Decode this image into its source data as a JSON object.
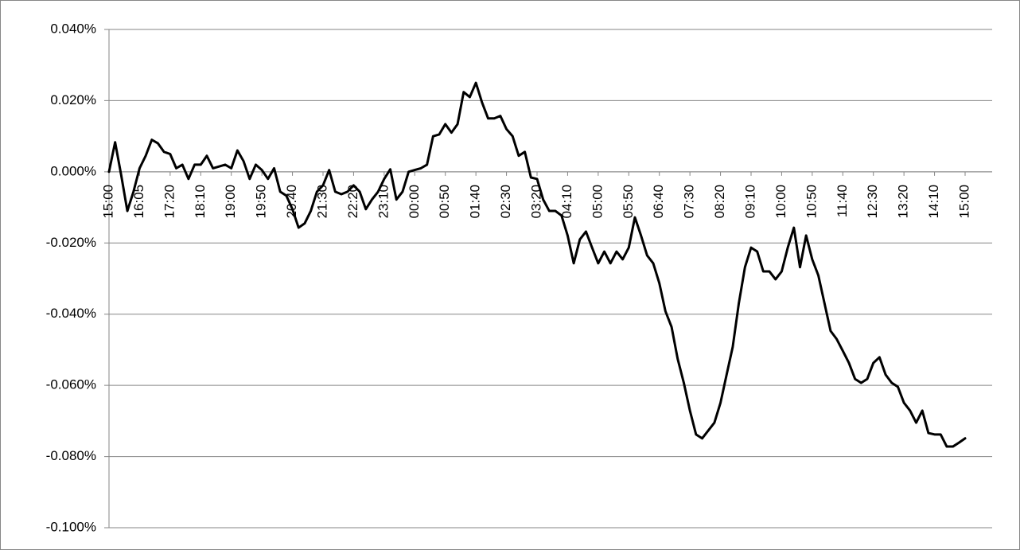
{
  "chart_data": {
    "type": "line",
    "categories": [
      "15:00",
      null,
      null,
      null,
      null,
      "16:05",
      null,
      null,
      null,
      null,
      "17:20",
      null,
      null,
      null,
      null,
      "18:10",
      null,
      null,
      null,
      null,
      "19:00",
      null,
      null,
      null,
      null,
      "19:50",
      null,
      null,
      null,
      null,
      "20:40",
      null,
      null,
      null,
      null,
      "21:30",
      null,
      null,
      null,
      null,
      "22:20",
      null,
      null,
      null,
      null,
      "23:10",
      null,
      null,
      null,
      null,
      "00:00",
      null,
      null,
      null,
      null,
      "00:50",
      null,
      null,
      null,
      null,
      "01:40",
      null,
      null,
      null,
      null,
      "02:30",
      null,
      null,
      null,
      null,
      "03:20",
      null,
      null,
      null,
      null,
      "04:10",
      null,
      null,
      null,
      null,
      "05:00",
      null,
      null,
      null,
      null,
      "05:50",
      null,
      null,
      null,
      null,
      "06:40",
      null,
      null,
      null,
      null,
      "07:30",
      null,
      null,
      null,
      null,
      "08:20",
      null,
      null,
      null,
      null,
      "09:10",
      null,
      null,
      null,
      null,
      "10:00",
      null,
      null,
      null,
      null,
      "10:50",
      null,
      null,
      null,
      null,
      "11:40",
      null,
      null,
      null,
      null,
      "12:30",
      null,
      null,
      null,
      null,
      "13:20",
      null,
      null,
      null,
      null,
      "14:10",
      null,
      null,
      null,
      null,
      "15:00"
    ],
    "values": [
      0,
      0.0083,
      -0.001,
      -0.011,
      -0.0056,
      0.001,
      0.0045,
      0.009,
      0.008,
      0.0056,
      0.005,
      0.001,
      0.002,
      -0.002,
      0.002,
      0.002,
      0.0045,
      0.001,
      0.0015,
      0.002,
      0.001,
      0.006,
      0.003,
      -0.002,
      0.002,
      0.0005,
      -0.002,
      0.001,
      -0.0056,
      -0.0067,
      -0.0105,
      -0.0157,
      -0.0145,
      -0.011,
      -0.0056,
      -0.0038,
      0.0005,
      -0.0056,
      -0.0063,
      -0.0056,
      -0.0038,
      -0.0056,
      -0.0105,
      -0.0078,
      -0.0056,
      -0.002,
      0.0007,
      -0.0078,
      -0.0056,
      0,
      0.0005,
      0.001,
      0.002,
      0.01,
      0.0105,
      0.0134,
      0.011,
      0.0134,
      0.0224,
      0.021,
      0.025,
      0.0195,
      0.015,
      0.015,
      0.0157,
      0.012,
      0.01,
      0.0045,
      0.0056,
      -0.0016,
      -0.002,
      -0.0078,
      -0.011,
      -0.011,
      -0.0123,
      -0.0179,
      -0.0257,
      -0.019,
      -0.0168,
      -0.0213,
      -0.0257,
      -0.0224,
      -0.0257,
      -0.0224,
      -0.0246,
      -0.0213,
      -0.0128,
      -0.0179,
      -0.0235,
      -0.0257,
      -0.0313,
      -0.0392,
      -0.0436,
      -0.0526,
      -0.0593,
      -0.0671,
      -0.0738,
      -0.0749,
      -0.0727,
      -0.0705,
      -0.0649,
      -0.057,
      -0.0492,
      -0.0369,
      -0.0268,
      -0.0213,
      -0.0224,
      -0.028,
      -0.028,
      -0.0302,
      -0.028,
      -0.0213,
      -0.0157,
      -0.0268,
      -0.0179,
      -0.0246,
      -0.0291,
      -0.0369,
      -0.0447,
      -0.047,
      -0.0503,
      -0.0537,
      -0.0582,
      -0.0593,
      -0.0582,
      -0.0537,
      -0.0521,
      -0.057,
      -0.0593,
      -0.0604,
      -0.0649,
      -0.0671,
      -0.0705,
      -0.0671,
      -0.0734,
      -0.0738,
      -0.0738,
      -0.0772,
      -0.0772,
      -0.0761,
      -0.0749
    ],
    "color": "#000000",
    "ylim": [
      -0.1,
      0.04
    ],
    "yticks": [
      {
        "value": -0.1,
        "label": "-0.100%"
      },
      {
        "value": -0.08,
        "label": "-0.080%"
      },
      {
        "value": -0.06,
        "label": "-0.060%"
      },
      {
        "value": -0.04,
        "label": "-0.040%"
      },
      {
        "value": -0.02,
        "label": "-0.020%"
      },
      {
        "value": 0,
        "label": "0.000%"
      },
      {
        "value": 0.02,
        "label": "0.020%"
      },
      {
        "value": 0.04,
        "label": "0.040%"
      }
    ],
    "grid": true
  }
}
